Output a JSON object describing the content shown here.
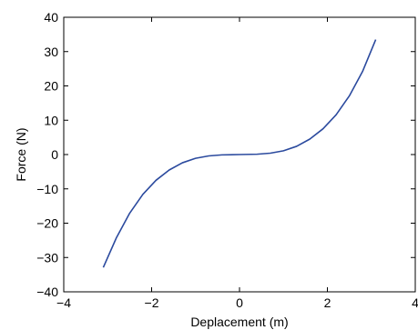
{
  "chart_data": {
    "type": "line",
    "title": "",
    "xlabel": "Deplacement (m)",
    "ylabel": "Force (N)",
    "xlim": [
      -4,
      4
    ],
    "ylim": [
      -40,
      40
    ],
    "xticks": [
      "−4",
      "−2",
      "0",
      "2",
      "4"
    ],
    "yticks": [
      "−40",
      "−30",
      "−20",
      "−10",
      "0",
      "10",
      "20",
      "30",
      "40"
    ],
    "grid": false,
    "series": [
      {
        "color": "#2b4a9e",
        "x": [
          -3.1,
          -2.8,
          -2.5,
          -2.2,
          -1.9,
          -1.6,
          -1.3,
          -1.0,
          -0.7,
          -0.4,
          0.0,
          0.4,
          0.7,
          1.0,
          1.3,
          1.6,
          1.9,
          2.2,
          2.5,
          2.8,
          3.1
        ],
        "y": [
          -32.9,
          -24.2,
          -17.1,
          -11.6,
          -7.5,
          -4.5,
          -2.4,
          -1.1,
          -0.4,
          -0.1,
          0.0,
          0.1,
          0.4,
          1.1,
          2.4,
          4.5,
          7.5,
          11.6,
          17.1,
          24.2,
          33.5
        ]
      }
    ]
  }
}
